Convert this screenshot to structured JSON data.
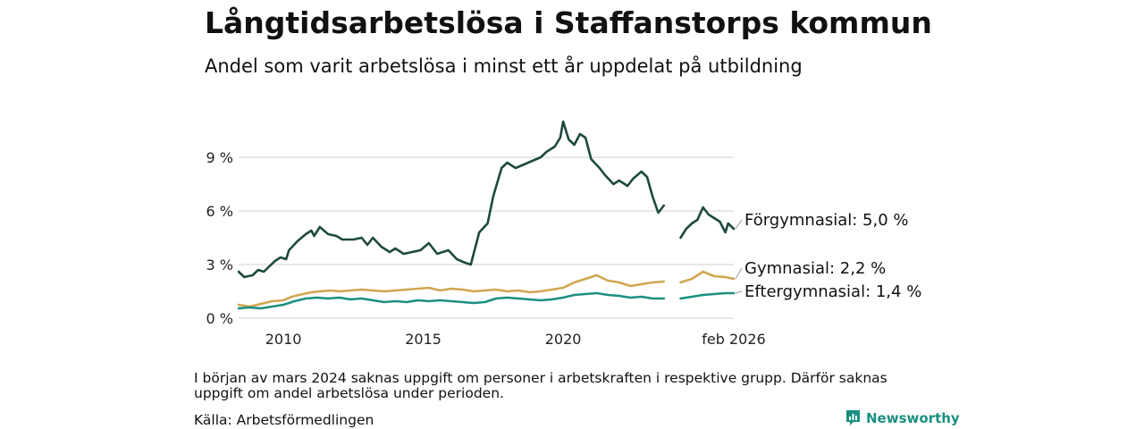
{
  "header": {
    "title": "Långtidsarbetslösa i Staffanstorps kommun",
    "subtitle": "Andel som varit arbetslösa i minst ett år uppdelat på utbildning"
  },
  "footer": {
    "note": "I början av mars 2024 saknas uppgift om personer i arbetskraften i respektive grupp. Därför saknas uppgift om andel arbetslösa under perioden.",
    "source": "Källa: Arbetsförmedlingen",
    "brand": "Newsworthy"
  },
  "chart_data": {
    "type": "line",
    "title": "Långtidsarbetslösa i Staffanstorps kommun",
    "subtitle": "Andel som varit arbetslösa i minst ett år uppdelat på utbildning",
    "xlabel": "",
    "ylabel": "",
    "xlim": [
      2008.4,
      2026.1
    ],
    "ylim": [
      0,
      10.8
    ],
    "y_ticks": [
      0,
      3,
      6,
      9
    ],
    "y_tick_labels": [
      "0 %",
      "3 %",
      "6 %",
      "9 %"
    ],
    "x_ticks": [
      2010,
      2015,
      2020,
      2026.1
    ],
    "x_tick_labels": [
      "2010",
      "2015",
      "2020",
      "feb 2026"
    ],
    "grid": true,
    "series": [
      {
        "name": "Förgymnasial",
        "end_label": "Förgymnasial: 5,0 %",
        "color": "#1d4a3f",
        "points": [
          [
            2008.4,
            2.6
          ],
          [
            2008.6,
            2.3
          ],
          [
            2008.9,
            2.4
          ],
          [
            2009.1,
            2.7
          ],
          [
            2009.3,
            2.6
          ],
          [
            2009.5,
            2.9
          ],
          [
            2009.7,
            3.2
          ],
          [
            2009.9,
            3.4
          ],
          [
            2010.1,
            3.3
          ],
          [
            2010.2,
            3.8
          ],
          [
            2010.5,
            4.3
          ],
          [
            2010.8,
            4.7
          ],
          [
            2011.0,
            4.9
          ],
          [
            2011.1,
            4.6
          ],
          [
            2011.3,
            5.1
          ],
          [
            2011.6,
            4.7
          ],
          [
            2011.9,
            4.6
          ],
          [
            2012.1,
            4.4
          ],
          [
            2012.5,
            4.4
          ],
          [
            2012.8,
            4.5
          ],
          [
            2013.0,
            4.1
          ],
          [
            2013.2,
            4.5
          ],
          [
            2013.5,
            4.0
          ],
          [
            2013.8,
            3.7
          ],
          [
            2014.0,
            3.9
          ],
          [
            2014.3,
            3.6
          ],
          [
            2014.6,
            3.7
          ],
          [
            2014.9,
            3.8
          ],
          [
            2015.2,
            4.2
          ],
          [
            2015.5,
            3.6
          ],
          [
            2015.9,
            3.8
          ],
          [
            2016.2,
            3.3
          ],
          [
            2016.5,
            3.1
          ],
          [
            2016.7,
            3.0
          ],
          [
            2017.0,
            4.8
          ],
          [
            2017.3,
            5.3
          ],
          [
            2017.5,
            6.8
          ],
          [
            2017.8,
            8.4
          ],
          [
            2018.0,
            8.7
          ],
          [
            2018.3,
            8.4
          ],
          [
            2018.6,
            8.6
          ],
          [
            2018.9,
            8.8
          ],
          [
            2019.2,
            9.0
          ],
          [
            2019.4,
            9.3
          ],
          [
            2019.7,
            9.6
          ],
          [
            2019.9,
            10.1
          ],
          [
            2020.0,
            11.0
          ],
          [
            2020.2,
            10.0
          ],
          [
            2020.4,
            9.7
          ],
          [
            2020.6,
            10.3
          ],
          [
            2020.8,
            10.1
          ],
          [
            2021.0,
            8.9
          ],
          [
            2021.3,
            8.4
          ],
          [
            2021.5,
            8.0
          ],
          [
            2021.8,
            7.5
          ],
          [
            2022.0,
            7.7
          ],
          [
            2022.3,
            7.4
          ],
          [
            2022.5,
            7.8
          ],
          [
            2022.8,
            8.2
          ],
          [
            2023.0,
            7.9
          ],
          [
            2023.2,
            6.8
          ],
          [
            2023.4,
            5.9
          ],
          [
            2023.6,
            6.3
          ],
          null,
          [
            2024.2,
            4.5
          ],
          [
            2024.4,
            5.0
          ],
          [
            2024.6,
            5.3
          ],
          [
            2024.8,
            5.5
          ],
          [
            2025.0,
            6.2
          ],
          [
            2025.2,
            5.8
          ],
          [
            2025.4,
            5.6
          ],
          [
            2025.6,
            5.4
          ],
          [
            2025.8,
            4.8
          ],
          [
            2025.9,
            5.3
          ],
          [
            2026.1,
            5.0
          ]
        ]
      },
      {
        "name": "Gymnasial",
        "end_label": "Gymnasial: 2,2 %",
        "color": "#d0a650",
        "points": [
          [
            2008.4,
            0.75
          ],
          [
            2008.8,
            0.65
          ],
          [
            2009.2,
            0.8
          ],
          [
            2009.6,
            0.95
          ],
          [
            2010.0,
            1.0
          ],
          [
            2010.3,
            1.2
          ],
          [
            2010.7,
            1.35
          ],
          [
            2011.0,
            1.45
          ],
          [
            2011.3,
            1.5
          ],
          [
            2011.7,
            1.55
          ],
          [
            2012.0,
            1.5
          ],
          [
            2012.4,
            1.55
          ],
          [
            2012.8,
            1.6
          ],
          [
            2013.2,
            1.55
          ],
          [
            2013.6,
            1.5
          ],
          [
            2014.0,
            1.55
          ],
          [
            2014.4,
            1.6
          ],
          [
            2014.8,
            1.65
          ],
          [
            2015.2,
            1.7
          ],
          [
            2015.6,
            1.55
          ],
          [
            2016.0,
            1.65
          ],
          [
            2016.4,
            1.6
          ],
          [
            2016.8,
            1.5
          ],
          [
            2017.2,
            1.55
          ],
          [
            2017.6,
            1.6
          ],
          [
            2018.0,
            1.5
          ],
          [
            2018.4,
            1.55
          ],
          [
            2018.8,
            1.45
          ],
          [
            2019.2,
            1.5
          ],
          [
            2019.6,
            1.6
          ],
          [
            2020.0,
            1.7
          ],
          [
            2020.4,
            2.0
          ],
          [
            2020.8,
            2.2
          ],
          [
            2021.2,
            2.4
          ],
          [
            2021.6,
            2.1
          ],
          [
            2022.0,
            2.0
          ],
          [
            2022.4,
            1.8
          ],
          [
            2022.8,
            1.9
          ],
          [
            2023.2,
            2.0
          ],
          [
            2023.6,
            2.05
          ],
          null,
          [
            2024.2,
            2.0
          ],
          [
            2024.6,
            2.2
          ],
          [
            2025.0,
            2.6
          ],
          [
            2025.4,
            2.35
          ],
          [
            2025.8,
            2.3
          ],
          [
            2026.1,
            2.2
          ]
        ]
      },
      {
        "name": "Eftergymnasial",
        "end_label": "Eftergymnasial: 1,4 %",
        "color": "#1a9080",
        "points": [
          [
            2008.4,
            0.55
          ],
          [
            2008.8,
            0.6
          ],
          [
            2009.2,
            0.55
          ],
          [
            2009.6,
            0.65
          ],
          [
            2010.0,
            0.75
          ],
          [
            2010.4,
            0.95
          ],
          [
            2010.8,
            1.1
          ],
          [
            2011.2,
            1.15
          ],
          [
            2011.6,
            1.1
          ],
          [
            2012.0,
            1.15
          ],
          [
            2012.4,
            1.05
          ],
          [
            2012.8,
            1.1
          ],
          [
            2013.2,
            1.0
          ],
          [
            2013.6,
            0.9
          ],
          [
            2014.0,
            0.95
          ],
          [
            2014.4,
            0.9
          ],
          [
            2014.8,
            1.0
          ],
          [
            2015.2,
            0.95
          ],
          [
            2015.6,
            1.0
          ],
          [
            2016.0,
            0.95
          ],
          [
            2016.4,
            0.9
          ],
          [
            2016.8,
            0.85
          ],
          [
            2017.2,
            0.9
          ],
          [
            2017.6,
            1.1
          ],
          [
            2018.0,
            1.15
          ],
          [
            2018.4,
            1.1
          ],
          [
            2018.8,
            1.05
          ],
          [
            2019.2,
            1.0
          ],
          [
            2019.6,
            1.05
          ],
          [
            2020.0,
            1.15
          ],
          [
            2020.4,
            1.3
          ],
          [
            2020.8,
            1.35
          ],
          [
            2021.2,
            1.4
          ],
          [
            2021.6,
            1.3
          ],
          [
            2022.0,
            1.25
          ],
          [
            2022.4,
            1.15
          ],
          [
            2022.8,
            1.2
          ],
          [
            2023.2,
            1.1
          ],
          [
            2023.6,
            1.1
          ],
          null,
          [
            2024.2,
            1.1
          ],
          [
            2024.6,
            1.2
          ],
          [
            2025.0,
            1.3
          ],
          [
            2025.4,
            1.35
          ],
          [
            2025.8,
            1.4
          ],
          [
            2026.1,
            1.4
          ]
        ]
      }
    ]
  }
}
